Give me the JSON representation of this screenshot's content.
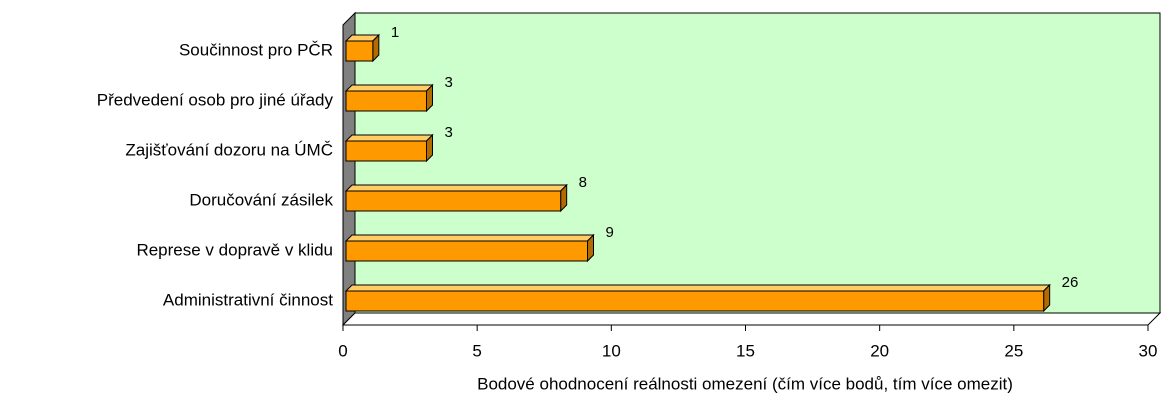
{
  "chart_data": {
    "type": "bar",
    "orientation": "horizontal",
    "categories": [
      "Součinnost pro PČR",
      "Předvedení osob pro jiné úřady",
      "Zajišťování dozoru na ÚMČ",
      "Doručování zásilek",
      "Represe v dopravě v klidu",
      "Administrativní činnost"
    ],
    "values": [
      1,
      3,
      3,
      8,
      9,
      26
    ],
    "color": "#ff9900",
    "xlim": [
      0,
      30
    ],
    "xticks": [
      0,
      5,
      10,
      15,
      20,
      25,
      30
    ],
    "xlabel": "Bodové ohodnocení reálnosti omezení (čím více bodů, tím více omezit)"
  }
}
